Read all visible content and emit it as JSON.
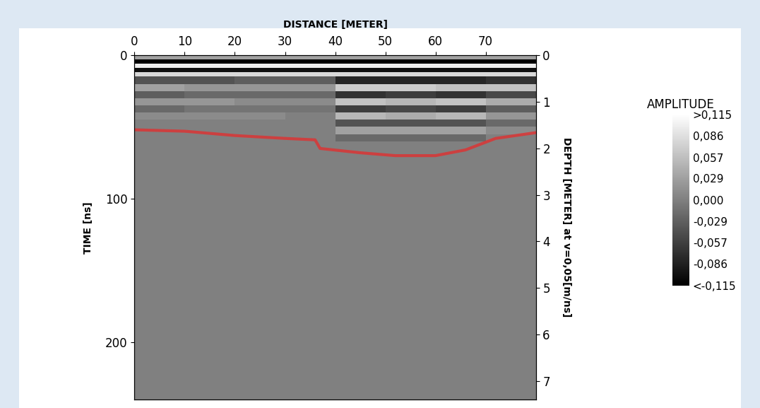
{
  "chart_data": {
    "type": "heatmap",
    "x_label": "DISTANCE [METER]",
    "y_label": "TIME [ns]",
    "y2_label": "DEPTH [METER] at v=0,05[m/ns]",
    "xlim": [
      0,
      80
    ],
    "xticks": [
      0,
      10,
      20,
      30,
      40,
      50,
      60,
      70
    ],
    "ylim": [
      240,
      0
    ],
    "yticks": [
      0,
      100,
      200
    ],
    "y2lim": [
      7.4,
      0
    ],
    "y2ticks": [
      0,
      1,
      2,
      3,
      4,
      5,
      6,
      7
    ],
    "distance_edges": [
      0,
      10,
      20,
      30,
      40,
      50,
      60,
      70,
      80
    ],
    "time_edges": [
      0,
      3,
      6,
      9,
      12,
      15,
      20,
      25,
      30,
      35,
      40,
      45,
      50,
      55,
      60,
      80,
      120,
      160,
      200,
      240
    ],
    "cells": [
      [
        0.03,
        0.03,
        0.03,
        0.03,
        0.03,
        0.03,
        0.03,
        0.03
      ],
      [
        -0.115,
        -0.115,
        -0.115,
        -0.115,
        -0.115,
        -0.115,
        -0.115,
        -0.115
      ],
      [
        0.1,
        0.1,
        0.1,
        0.1,
        0.1,
        0.1,
        0.1,
        0.1
      ],
      [
        -0.1,
        -0.1,
        -0.1,
        -0.1,
        -0.1,
        -0.1,
        -0.1,
        -0.1
      ],
      [
        0.08,
        0.08,
        0.08,
        0.08,
        0.08,
        0.08,
        0.08,
        0.08
      ],
      [
        -0.04,
        -0.04,
        -0.03,
        -0.03,
        -0.08,
        -0.08,
        -0.08,
        -0.07
      ],
      [
        0.03,
        0.02,
        0.02,
        0.02,
        0.07,
        0.07,
        0.06,
        0.06
      ],
      [
        -0.03,
        -0.02,
        -0.02,
        -0.02,
        -0.07,
        -0.06,
        -0.07,
        -0.05
      ],
      [
        0.02,
        0.02,
        0.01,
        0.01,
        0.06,
        0.05,
        0.06,
        0.04
      ],
      [
        -0.02,
        -0.01,
        -0.01,
        -0.01,
        -0.06,
        -0.05,
        -0.06,
        -0.03
      ],
      [
        0.01,
        0.01,
        0.01,
        0.0,
        0.05,
        0.04,
        0.05,
        0.02
      ],
      [
        0.0,
        0.0,
        0.0,
        0.0,
        -0.04,
        -0.04,
        -0.04,
        -0.02
      ],
      [
        0.0,
        0.0,
        0.0,
        0.0,
        0.03,
        0.03,
        0.03,
        0.01
      ],
      [
        0.0,
        0.0,
        0.0,
        0.0,
        -0.02,
        -0.02,
        -0.02,
        0.0
      ],
      [
        0.0,
        0.0,
        0.0,
        0.0,
        0.0,
        0.0,
        0.0,
        0.0
      ],
      [
        0.0,
        0.0,
        0.0,
        0.0,
        0.0,
        0.0,
        0.0,
        0.0
      ],
      [
        0.0,
        0.0,
        0.0,
        0.0,
        0.0,
        0.0,
        0.0,
        0.0
      ],
      [
        0.0,
        0.0,
        0.0,
        0.0,
        0.0,
        0.0,
        0.0,
        0.0
      ],
      [
        0.0,
        0.0,
        0.0,
        0.0,
        0.0,
        0.0,
        0.0,
        0.0
      ]
    ],
    "horizon": {
      "color": "#e03030",
      "x": [
        0,
        10,
        20,
        30,
        36,
        37,
        45,
        52,
        60,
        66,
        72,
        80
      ],
      "values": [
        52,
        53,
        56,
        58,
        59,
        65,
        68,
        70,
        70,
        66,
        58,
        54
      ]
    },
    "colorbar": {
      "title": "AMPLITUDE",
      "range": [
        -0.115,
        0.115
      ],
      "ticks": [
        {
          "value": -0.115,
          "label": "<-0,115"
        },
        {
          "value": -0.086,
          "label": "-0,086"
        },
        {
          "value": -0.057,
          "label": "-0,057"
        },
        {
          "value": -0.029,
          "label": "-0,029"
        },
        {
          "value": 0.0,
          "label": "0,000"
        },
        {
          "value": 0.029,
          "label": "0,029"
        },
        {
          "value": 0.057,
          "label": "0,057"
        },
        {
          "value": 0.086,
          "label": "0,086"
        },
        {
          "value": 0.115,
          "label": ">0,115"
        }
      ]
    }
  }
}
